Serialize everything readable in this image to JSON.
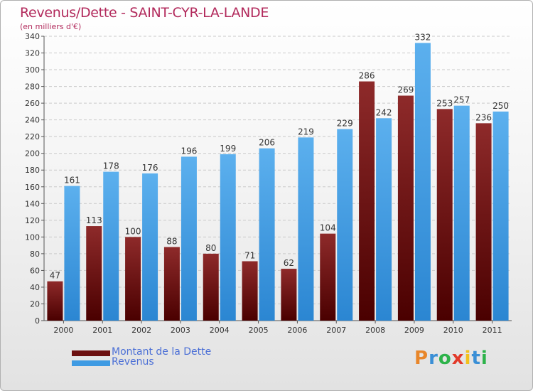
{
  "header": {
    "title": "Revenus/Dette - SAINT-CYR-LA-LANDE",
    "subtitle": "(en milliers d'€)"
  },
  "chart_data": {
    "type": "bar",
    "categories": [
      "2000",
      "2001",
      "2002",
      "2003",
      "2004",
      "2005",
      "2006",
      "2007",
      "2008",
      "2009",
      "2010",
      "2011"
    ],
    "series": [
      {
        "name": "Montant de la Dette",
        "color": "#7a1a1a",
        "values": [
          47,
          113,
          100,
          88,
          80,
          71,
          62,
          104,
          286,
          269,
          253,
          236
        ]
      },
      {
        "name": "Revenus",
        "color": "#4aa3e6",
        "values": [
          161,
          178,
          176,
          196,
          199,
          206,
          219,
          229,
          242,
          332,
          257,
          250
        ]
      }
    ],
    "ylim": [
      0,
      340
    ],
    "yticks": [
      0,
      20,
      40,
      60,
      80,
      100,
      120,
      140,
      160,
      180,
      200,
      220,
      240,
      260,
      280,
      300,
      320,
      340
    ],
    "grid": true,
    "legend_position": "bottom-left"
  },
  "legend": {
    "items": [
      {
        "label": "Montant de la Dette",
        "color": "#6b0f0f"
      },
      {
        "label": "Revenus",
        "color": "#3f9be3"
      }
    ]
  },
  "logo": {
    "letters": [
      "P",
      "r",
      "o",
      "x",
      "i",
      "t",
      "i"
    ],
    "colors": [
      "#e8862a",
      "#3a8fd6",
      "#2db34a",
      "#e23a2a",
      "#f2c11c",
      "#3a8fd6",
      "#2db34a"
    ]
  }
}
